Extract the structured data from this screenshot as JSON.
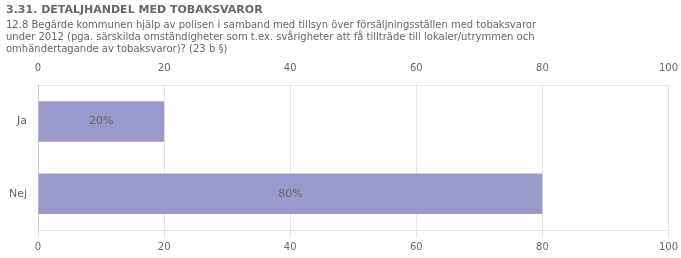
{
  "chart_data": {
    "type": "bar",
    "orientation": "horizontal",
    "title": "3.31. DETALJHANDEL MED TOBAKSVAROR",
    "subtitle": [
      "12.8 Begärde kommunen hjälp av polisen i samband med tillsyn över försäljningsställen med tobaksvaror",
      "under 2012 (pga. särskilda omständigheter som t.ex. svårigheter att få tillträde till lokaler/utrymmen och",
      "omhändertagande av tobaksvaror)? (23 b §)"
    ],
    "categories": [
      "Ja",
      "Nej"
    ],
    "values": [
      20,
      80
    ],
    "value_labels": [
      "20%",
      "80%"
    ],
    "data_labels": true,
    "color": "#9999cc",
    "xlim": [
      0,
      100
    ],
    "xticks": [
      0,
      20,
      40,
      60,
      80,
      100
    ],
    "grid": true
  }
}
